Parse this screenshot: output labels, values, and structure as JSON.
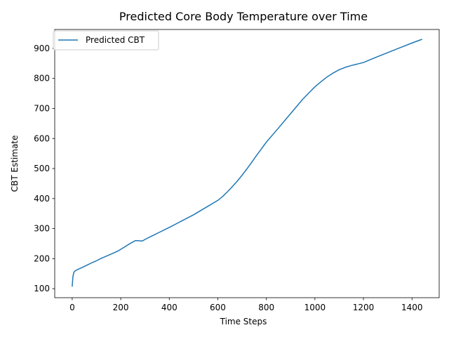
{
  "chart_data": {
    "type": "line",
    "title": "Predicted Core Body Temperature over Time",
    "xlabel": "Time Steps",
    "ylabel": "CBT Estimate",
    "xlim": [
      -72,
      1512
    ],
    "ylim": [
      70,
      963
    ],
    "xticks": [
      0,
      200,
      400,
      600,
      800,
      1000,
      1200,
      1400
    ],
    "yticks": [
      100,
      200,
      300,
      400,
      500,
      600,
      700,
      800,
      900
    ],
    "grid": false,
    "legend_position": "top-left",
    "colors": {
      "series": "#1f77b4"
    },
    "series": [
      {
        "name": "Predicted CBT",
        "x": [
          0,
          3,
          6,
          10,
          20,
          40,
          60,
          80,
          100,
          120,
          140,
          160,
          180,
          190,
          200,
          220,
          240,
          260,
          270,
          280,
          290,
          300,
          320,
          340,
          360,
          380,
          400,
          450,
          500,
          550,
          600,
          620,
          640,
          660,
          680,
          700,
          720,
          740,
          760,
          780,
          790,
          800,
          850,
          900,
          950,
          985,
          1000,
          1025,
          1050,
          1075,
          1100,
          1125,
          1150,
          1175,
          1200,
          1250,
          1300,
          1350,
          1400,
          1440
        ],
        "values": [
          108,
          140,
          152,
          158,
          163,
          170,
          178,
          186,
          193,
          201,
          208,
          215,
          222,
          226,
          231,
          241,
          251,
          260,
          260,
          259,
          259,
          264,
          272,
          280,
          288,
          296,
          304,
          325,
          346,
          370,
          394,
          407,
          423,
          440,
          458,
          478,
          499,
          521,
          544,
          566,
          577,
          588,
          635,
          683,
          731,
          760,
          772,
          789,
          805,
          818,
          829,
          837,
          843,
          848,
          853,
          870,
          886,
          902,
          918,
          930
        ]
      }
    ]
  }
}
